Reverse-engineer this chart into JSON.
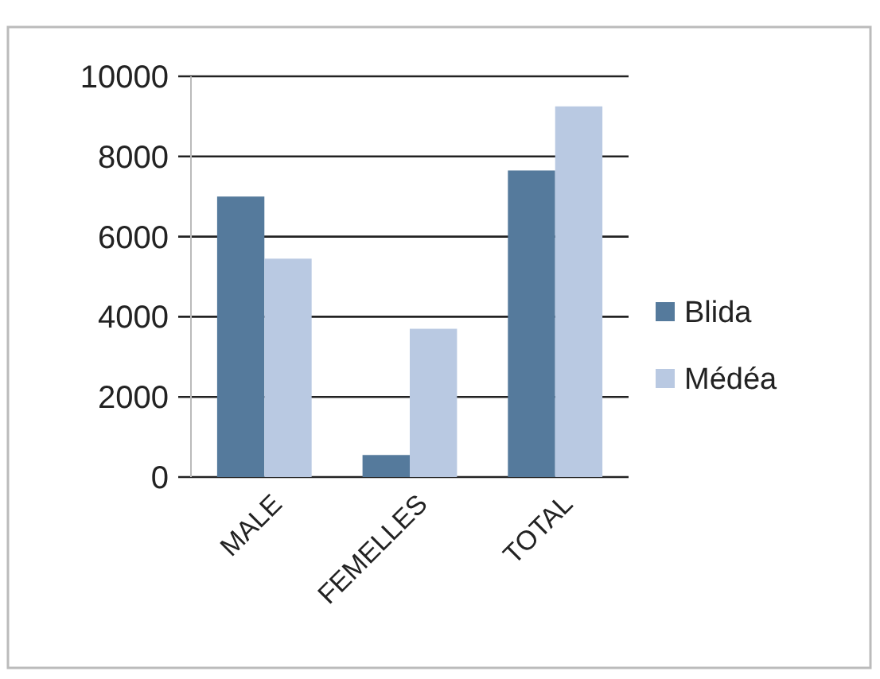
{
  "chart_data": {
    "type": "bar",
    "categories": [
      "MALE",
      "FEMELLES",
      "TOTAL"
    ],
    "series": [
      {
        "name": "Blida",
        "color": "#557a9c",
        "values": [
          7000,
          550,
          7650
        ]
      },
      {
        "name": "Médéa",
        "color": "#b9c9e2",
        "values": [
          5450,
          3700,
          9250
        ]
      }
    ],
    "ylim": [
      0,
      10000
    ],
    "yticks": [
      0,
      2000,
      4000,
      6000,
      8000,
      10000
    ],
    "grid": "y",
    "legend": "right"
  }
}
